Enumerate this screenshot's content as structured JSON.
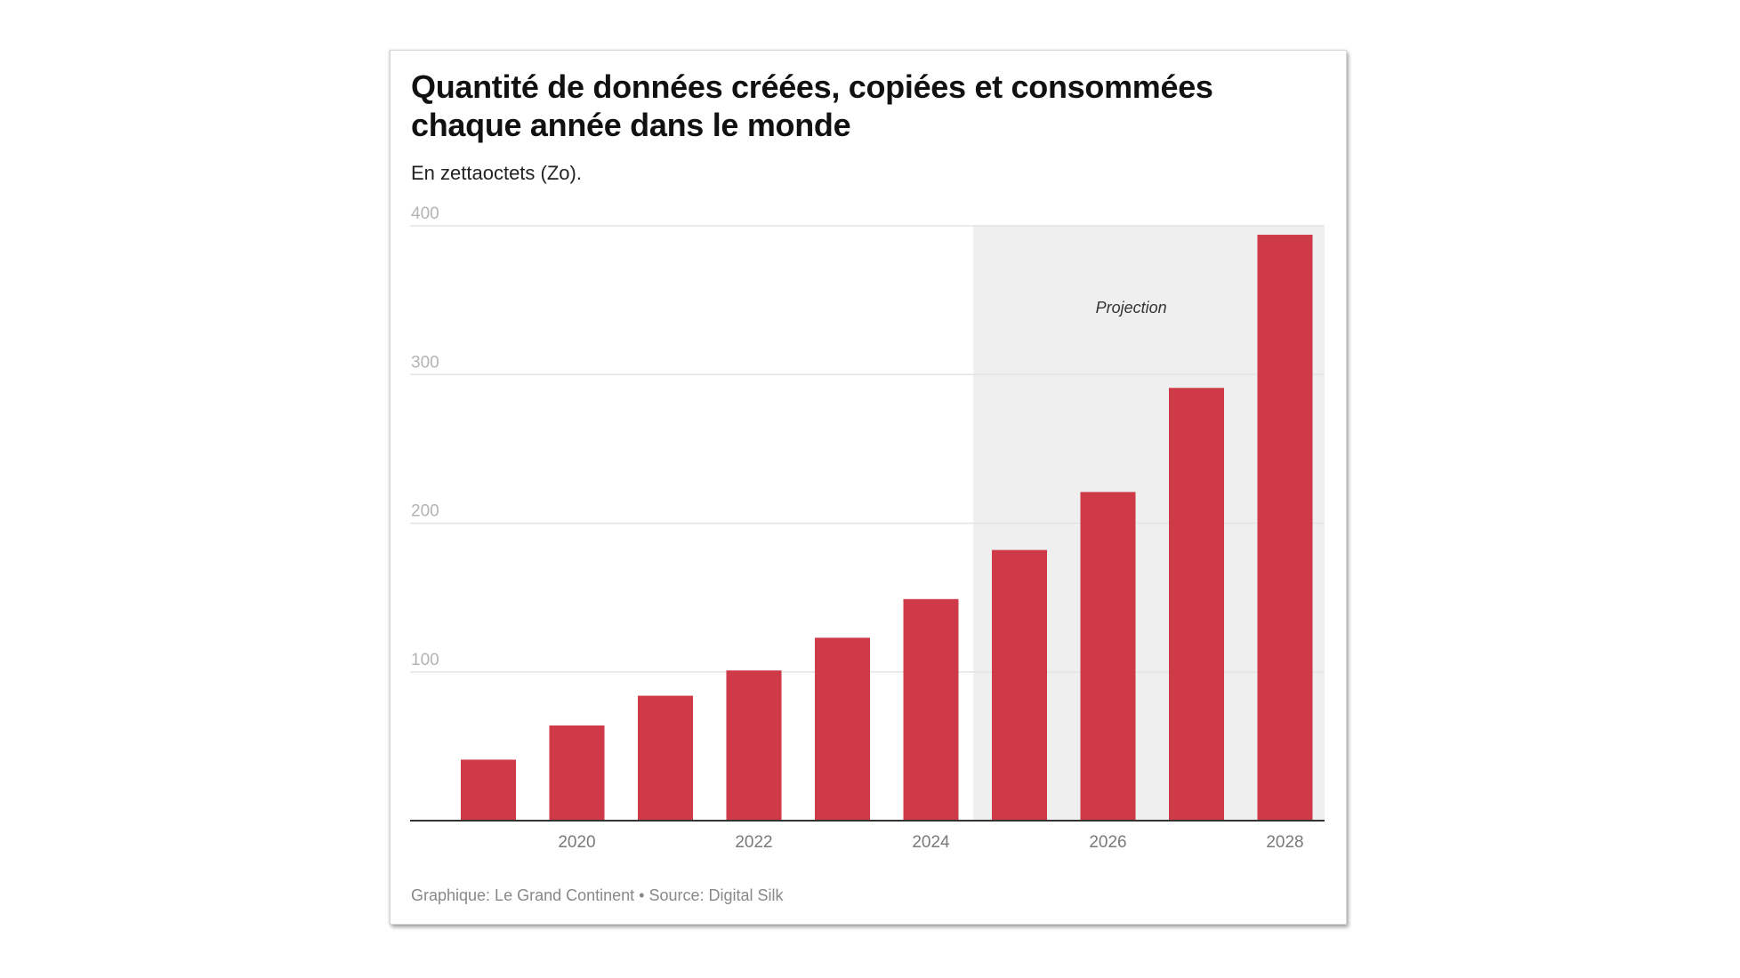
{
  "title": "Quantité de données créées, copiées et consommées chaque année dans le monde",
  "title_lines": [
    "Quantité de données créées, copiées et consommées",
    "chaque année dans le monde"
  ],
  "subtitle": "En zettaoctets (Zo).",
  "footer": "Graphique: Le Grand Continent • Source: Digital Silk",
  "colors": {
    "bar": "#cf3a48",
    "projection_shade": "#efefef",
    "gridline": "#e3e3e3",
    "axis": "#333333"
  },
  "chart_data": {
    "type": "bar",
    "title": "Quantité de données créées, copiées et consommées chaque année dans le monde",
    "subtitle": "En zettaoctets (Zo).",
    "xlabel": "",
    "ylabel": "",
    "categories": [
      "2019",
      "2020",
      "2021",
      "2022",
      "2023",
      "2024",
      "2025",
      "2026",
      "2027",
      "2028"
    ],
    "values": [
      41,
      64,
      84,
      101,
      123,
      149,
      182,
      221,
      291,
      394
    ],
    "x_tick_labels": [
      "2020",
      "2022",
      "2024",
      "2026",
      "2028"
    ],
    "y_ticks": [
      100,
      200,
      300,
      400
    ],
    "ylim": [
      0,
      400
    ],
    "grid": true,
    "annotations": [
      {
        "type": "shaded-range",
        "label": "Projection",
        "from_category": "2025",
        "to_category": "2028"
      }
    ],
    "legend": "none",
    "source": "Graphique: Le Grand Continent • Source: Digital Silk"
  }
}
